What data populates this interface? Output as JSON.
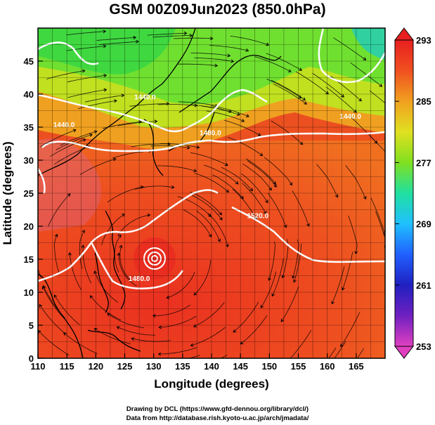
{
  "title": "GSM 00Z09Jun2023 (850.0hPa)",
  "x_axis": {
    "label": "Longitude (degrees)",
    "ticks": [
      "110",
      "115",
      "120",
      "125",
      "130",
      "135",
      "140",
      "145",
      "150",
      "155",
      "160",
      "165"
    ],
    "range": [
      110,
      170
    ]
  },
  "y_axis": {
    "label": "Latitude  (degrees)",
    "ticks": [
      "0",
      "5",
      "10",
      "15",
      "20",
      "25",
      "30",
      "35",
      "40",
      "45"
    ],
    "range": [
      0,
      50
    ]
  },
  "colorbar": {
    "ticks": [
      "293",
      "285",
      "277",
      "269",
      "261",
      "253"
    ],
    "range": [
      253,
      293
    ],
    "colors": [
      "#e040c0",
      "#7020c0",
      "#2020c0",
      "#2060ff",
      "#20c0ff",
      "#20e0a0",
      "#40e040",
      "#a0e020",
      "#f0e020",
      "#f0a020",
      "#f07020",
      "#e84020",
      "#e82020"
    ]
  },
  "contour_labels": [
    {
      "text": "1440.0",
      "lon": 128.5,
      "lat": 39.2
    },
    {
      "text": "1440.0",
      "lon": 114.5,
      "lat": 35.0
    },
    {
      "text": "1440.0",
      "lon": 164.0,
      "lat": 36.3
    },
    {
      "text": "1480.0",
      "lon": 139.8,
      "lat": 33.8
    },
    {
      "text": "1520.0",
      "lon": 148.0,
      "lat": 21.2
    },
    {
      "text": "1480.0",
      "lon": 127.5,
      "lat": 11.7
    }
  ],
  "credits": {
    "line1": "Drawing by DCL (https://www.gfd-dennou.org/library/dcl/)",
    "line2": "Data from http://database.rish.kyoto-u.ac.jp/arch/jmadata/"
  }
}
